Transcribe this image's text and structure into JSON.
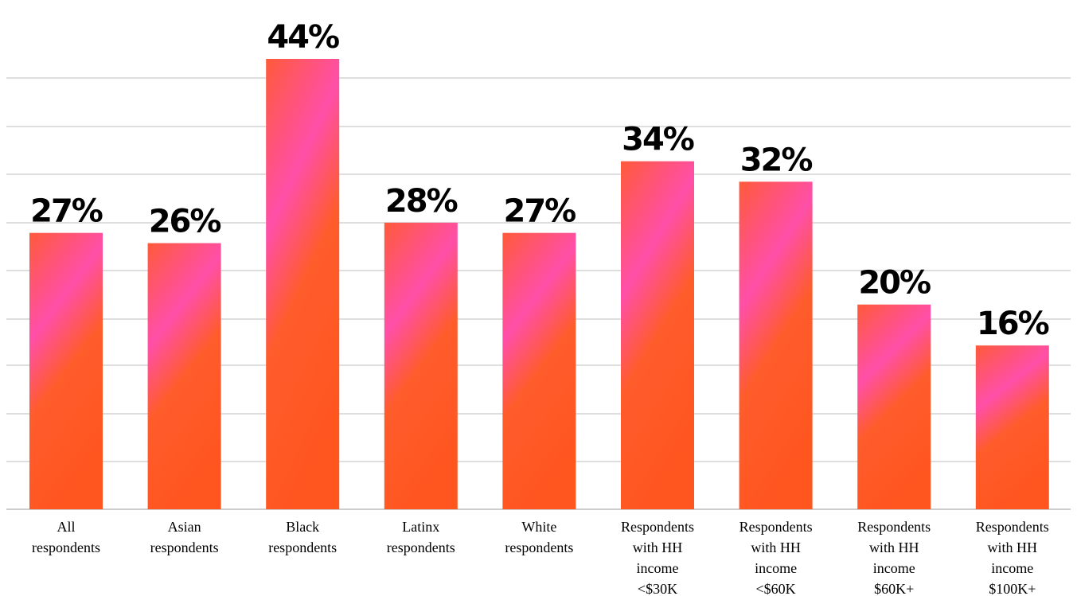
{
  "chart_data": {
    "type": "bar",
    "categories": [
      "All respondents",
      "Asian respondents",
      "Black respondents",
      "Latinx respondents",
      "White respondents",
      "Respondents with HH income <$30K",
      "Respondents with HH income <$60K",
      "Respondents with HH income $60K+",
      "Respondents with HH income $100K+"
    ],
    "category_label_lines": [
      [
        "All",
        "respondents"
      ],
      [
        "Asian",
        "respondents"
      ],
      [
        "Black",
        "respondents"
      ],
      [
        "Latinx",
        "respondents"
      ],
      [
        "White",
        "respondents"
      ],
      [
        "Respondents",
        "with HH",
        "income",
        "<$30K"
      ],
      [
        "Respondents",
        "with HH",
        "income",
        "<$60K"
      ],
      [
        "Respondents",
        "with HH",
        "income",
        "$60K+"
      ],
      [
        "Respondents",
        "with HH",
        "income",
        "$100K+"
      ]
    ],
    "values": [
      27,
      26,
      44,
      28,
      27,
      34,
      32,
      20,
      16
    ],
    "value_labels": [
      "27%",
      "26%",
      "44%",
      "28%",
      "27%",
      "34%",
      "32%",
      "20%",
      "16%"
    ],
    "title": "",
    "xlabel": "",
    "ylabel": "",
    "ylim": [
      0,
      48
    ],
    "grid": true,
    "legend": "none",
    "colors": {
      "bar_primary": "#ff5a1f",
      "bar_secondary": "#ff4fb8",
      "grid": "#d4d4d4",
      "text": "#000000"
    }
  }
}
